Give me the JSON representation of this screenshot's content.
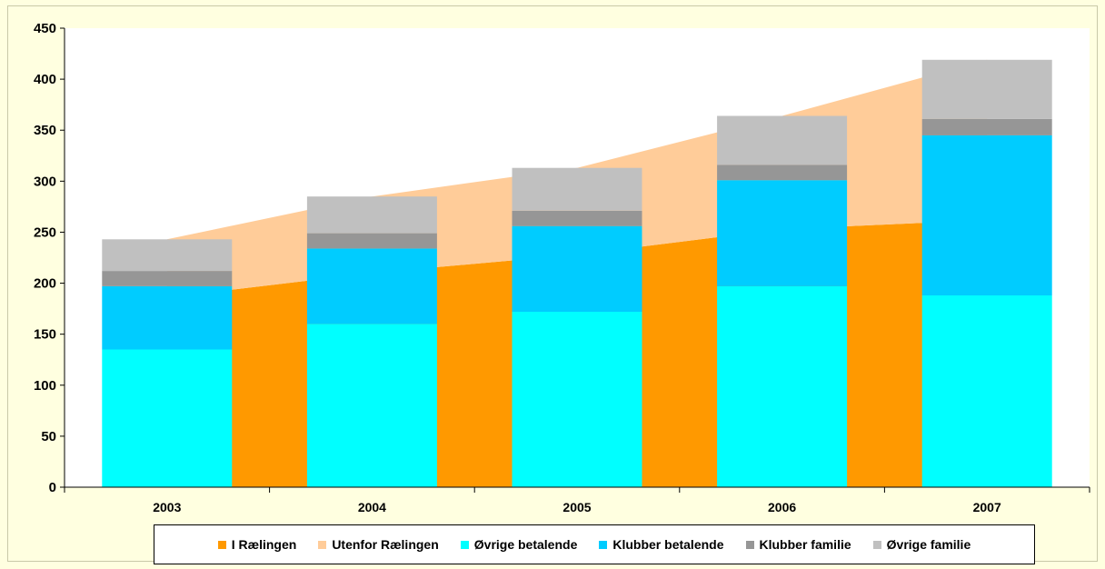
{
  "chart_data": {
    "type": "bar",
    "stacked": true,
    "categories": [
      "2003",
      "2004",
      "2005",
      "2006",
      "2007"
    ],
    "ylim": [
      0,
      450
    ],
    "yticks": [
      0,
      50,
      100,
      150,
      200,
      250,
      300,
      350,
      400,
      450
    ],
    "grid": false,
    "legend_position": "bottom",
    "area_series": [
      {
        "name": "I Rælingen",
        "color": "#ff9900",
        "values": [
          186,
          210,
          228,
          253,
          262
        ]
      },
      {
        "name": "Utenfor Rælingen",
        "color": "#ffcc99",
        "values": [
          57,
          75,
          85,
          111,
          157
        ]
      }
    ],
    "bar_series": [
      {
        "name": "Øvrige betalende",
        "color": "#00ffff",
        "values": [
          135,
          160,
          172,
          197,
          188
        ]
      },
      {
        "name": "Klubber betalende",
        "color": "#00ccff",
        "values": [
          62,
          74,
          84,
          104,
          157
        ]
      },
      {
        "name": "Klubber familie",
        "color": "#969696",
        "values": [
          15,
          15,
          15,
          15,
          16
        ]
      },
      {
        "name": "Øvrige  familie",
        "color": "#c0c0c0",
        "values": [
          31,
          36,
          42,
          48,
          58
        ]
      }
    ]
  }
}
